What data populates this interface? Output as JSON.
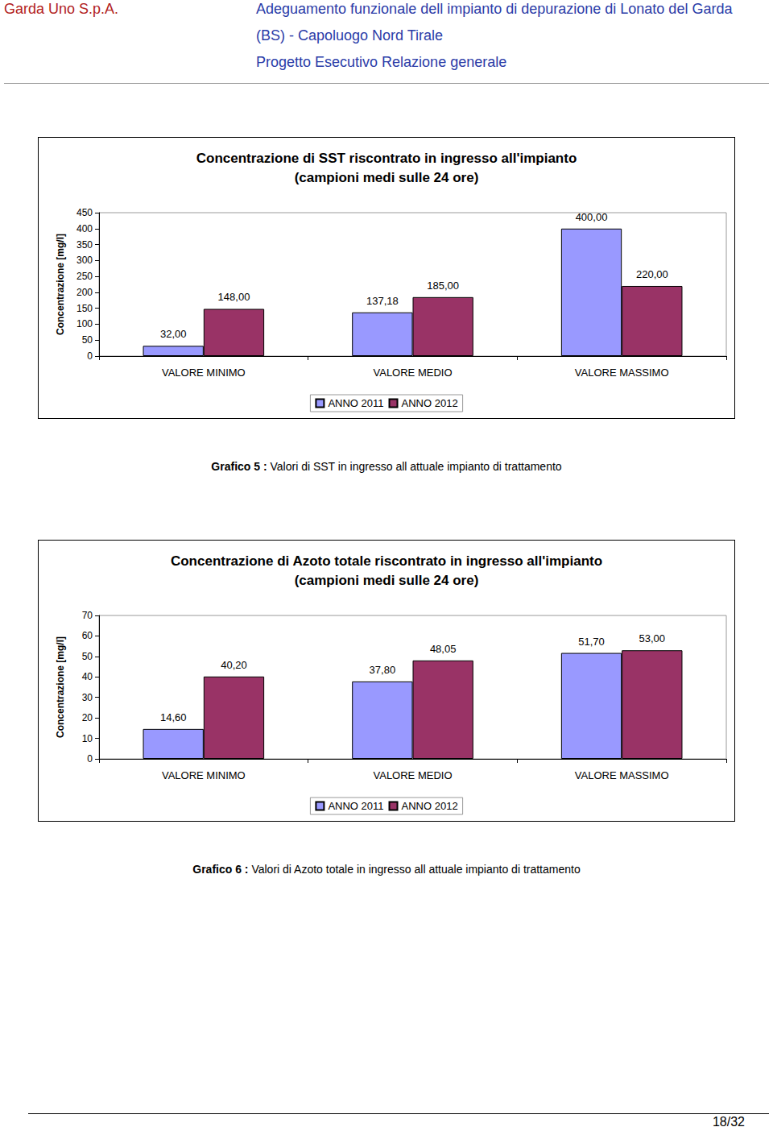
{
  "header": {
    "company": "Garda Uno S.p.A.",
    "lines": [
      "Adeguamento funzionale dell impianto di depurazione di Lonato del Garda",
      "(BS) - Capoluogo Nord Tirale",
      "Progetto Esecutivo Relazione generale"
    ]
  },
  "chart_data": [
    {
      "type": "bar",
      "title": [
        "Concentrazione di SST riscontrato in ingresso all'impianto",
        "(campioni medi sulle 24 ore)"
      ],
      "y_label": "Concentrazione [mg/l]",
      "categories": [
        "VALORE MINIMO",
        "VALORE MEDIO",
        "VALORE MASSIMO"
      ],
      "series": [
        {
          "name": "ANNO 2011",
          "color": "#9999ff",
          "values": [
            32,
            137.18,
            400
          ],
          "value_labels": [
            "32,00",
            "137,18",
            "400,00"
          ]
        },
        {
          "name": "ANNO 2012",
          "color": "#993366",
          "values": [
            148,
            185,
            220
          ],
          "value_labels": [
            "148,00",
            "185,00",
            "220,00"
          ]
        }
      ],
      "ylim": [
        0,
        450
      ],
      "yticks": [
        0,
        50,
        100,
        150,
        200,
        250,
        300,
        350,
        400,
        450
      ],
      "grid": false,
      "legend": "bottom",
      "data_labels": true
    },
    {
      "type": "bar",
      "title": [
        "Concentrazione di Azoto totale riscontrato in ingresso all'impianto",
        "(campioni medi sulle 24 ore)"
      ],
      "y_label": "Concentrazione [mg/l]",
      "categories": [
        "VALORE MINIMO",
        "VALORE MEDIO",
        "VALORE MASSIMO"
      ],
      "series": [
        {
          "name": "ANNO 2011",
          "color": "#9999ff",
          "values": [
            14.6,
            37.8,
            51.7
          ],
          "value_labels": [
            "14,60",
            "37,80",
            "51,70"
          ]
        },
        {
          "name": "ANNO 2012",
          "color": "#993366",
          "values": [
            40.2,
            48.05,
            53
          ],
          "value_labels": [
            "40,20",
            "48,05",
            "53,00"
          ]
        }
      ],
      "ylim": [
        0,
        70
      ],
      "yticks": [
        0,
        10,
        20,
        30,
        40,
        50,
        60,
        70
      ],
      "grid": false,
      "legend": "bottom",
      "data_labels": true
    }
  ],
  "figure_captions": [
    {
      "label": "Grafico 5 :",
      "text": "Valori di SST in ingresso all attuale impianto di trattamento"
    },
    {
      "label": "Grafico 6 :",
      "text": "Valori di Azoto totale in ingresso all attuale impianto di trattamento"
    }
  ],
  "page_number": "18/32"
}
